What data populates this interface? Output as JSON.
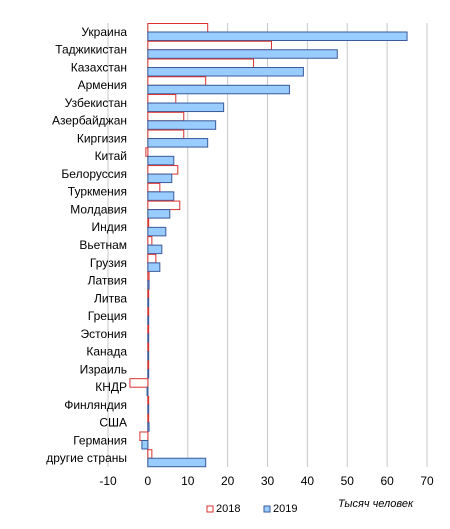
{
  "chart_data": {
    "type": "bar",
    "orientation": "horizontal",
    "categories": [
      "Украина",
      "Таджикистан",
      "Казахстан",
      "Армения",
      "Узбекистан",
      "Азербайджан",
      "Киргизия",
      "Китай",
      "Белоруссия",
      "Туркмения",
      "Молдавия",
      "Индия",
      "Вьетнам",
      "Грузия",
      "Латвия",
      "Литва",
      "Греция",
      "Эстония",
      "Канада",
      "Израиль",
      "КНДР",
      "Финляндия",
      "США",
      "Германия",
      "другие страны"
    ],
    "series": [
      {
        "name": "2018",
        "color": "#d9312c",
        "fill": "#ffffff",
        "values": [
          15,
          31,
          26.5,
          14.5,
          7,
          9,
          9,
          -0.5,
          7.5,
          3,
          8,
          0,
          1,
          2,
          0.3,
          0.2,
          0.2,
          0.2,
          0.2,
          0.2,
          -4.5,
          0,
          0.1,
          -2,
          1
        ]
      },
      {
        "name": "2019",
        "color": "#3a5a9c",
        "fill": "#99ccff",
        "values": [
          65,
          47.5,
          39,
          35.5,
          19,
          17,
          15,
          6.5,
          6,
          6.5,
          5.5,
          4.5,
          3.5,
          3,
          0.3,
          0.2,
          0.2,
          0.2,
          0.2,
          0.2,
          -0.2,
          0.1,
          0.3,
          -1.5,
          14.5
        ]
      }
    ],
    "xlim": [
      -10,
      70
    ],
    "xticks": [
      -10,
      0,
      10,
      20,
      30,
      40,
      50,
      60,
      70
    ],
    "xlabel": "Тысяч человек",
    "grid": "vertical",
    "legend": "bottom"
  }
}
